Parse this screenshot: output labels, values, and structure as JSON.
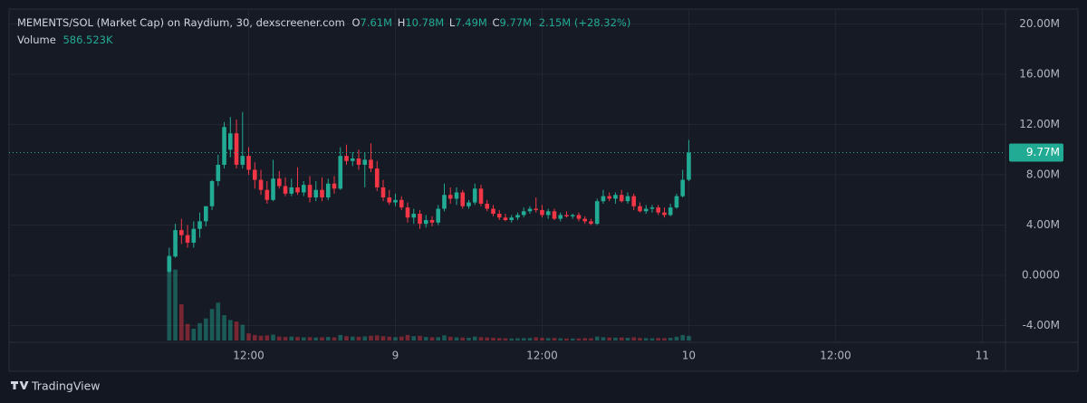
{
  "chart_data": {
    "type": "candlestick",
    "title": "MEMENTS/SOL (Market Cap) on Raydium, 30, dexscreener.com",
    "ohlc_letters": [
      "O",
      "H",
      "L",
      "C"
    ],
    "ohlc_value_labels": [
      "7.61M",
      "10.78M",
      "7.49M",
      "9.77M"
    ],
    "change_label": "2.15M (+28.32%)",
    "volume_title": "Volume",
    "volume_value_label": "586.523K",
    "last_price": 9770000,
    "last_price_label": "9.77M",
    "up_color": "#22ab94",
    "down_color": "#f23645",
    "grid": true,
    "xlim": [
      -7.6,
      73.9
    ],
    "xticks": [
      {
        "value": 12,
        "label": "12:00"
      },
      {
        "value": 24,
        "label": "9"
      },
      {
        "value": 36,
        "label": "12:00"
      },
      {
        "value": 48,
        "label": "10"
      },
      {
        "value": 60,
        "label": "12:00"
      },
      {
        "value": 72,
        "label": "11"
      }
    ],
    "ylim": [
      -5330000,
      21190000
    ],
    "yticks": [
      {
        "value": -4000000,
        "label": "-4.00M"
      },
      {
        "value": 0,
        "label": "0.0000"
      },
      {
        "value": 4000000,
        "label": "4.00M"
      },
      {
        "value": 8000000,
        "label": "8.00M"
      },
      {
        "value": 12000000,
        "label": "12.00M"
      },
      {
        "value": 16000000,
        "label": "16.00M"
      },
      {
        "value": 20000000,
        "label": "20.00M"
      }
    ],
    "x": [
      5.5,
      6,
      6.5,
      7,
      7.5,
      8,
      8.5,
      9,
      9.5,
      10,
      10.5,
      11,
      11.5,
      12,
      12.5,
      13,
      13.5,
      14,
      14.5,
      15,
      15.5,
      16,
      16.5,
      17,
      17.5,
      18,
      18.5,
      19,
      19.5,
      20,
      20.5,
      21,
      21.5,
      22,
      22.5,
      23,
      23.5,
      24,
      24.5,
      25,
      25.5,
      26,
      26.5,
      27,
      27.5,
      28,
      28.5,
      29,
      29.5,
      30,
      30.5,
      31,
      31.5,
      32,
      32.5,
      33,
      33.5,
      34,
      34.5,
      35,
      35.5,
      36,
      36.5,
      37,
      37.5,
      38,
      38.5,
      39,
      39.5,
      40,
      40.5,
      41,
      41.5,
      42,
      42.5,
      43,
      43.5,
      44,
      44.5,
      45,
      45.5,
      46,
      46.5,
      47,
      47.5,
      48
    ],
    "open": [
      300000,
      1500000,
      3600000,
      3200000,
      2600000,
      3700000,
      4300000,
      5500000,
      7500000,
      8800000,
      10000000,
      11300000,
      8800000,
      9500000,
      8400000,
      7600000,
      6800000,
      6000000,
      7700000,
      7100000,
      6500000,
      7000000,
      6600000,
      7200000,
      6200000,
      6800000,
      6200000,
      7300000,
      6900000,
      9500000,
      9100000,
      9300000,
      8800000,
      9200000,
      8500000,
      7000000,
      6200000,
      5800000,
      6000000,
      5400000,
      4600000,
      4900000,
      4100000,
      4400000,
      4200000,
      5300000,
      6400000,
      6100000,
      6600000,
      5500000,
      5800000,
      6900000,
      5700000,
      5300000,
      4900000,
      4600000,
      4400000,
      4600000,
      4800000,
      5100000,
      5300000,
      5200000,
      4800000,
      5100000,
      4500000,
      4800000,
      4700000,
      4800000,
      4500000,
      4300000,
      4100000,
      5900000,
      6300000,
      6100000,
      6400000,
      5900000,
      6300000,
      5500000,
      5100000,
      5300000,
      5400000,
      5000000,
      4800000,
      5400000,
      6300000,
      7610000
    ],
    "high": [
      2200000,
      4100000,
      4500000,
      4000000,
      4300000,
      5000000,
      5500000,
      7600000,
      9600000,
      12200000,
      12600000,
      12400000,
      13000000,
      10200000,
      9000000,
      8400000,
      7500000,
      9200000,
      8300000,
      7800000,
      7700000,
      8600000,
      7500000,
      7900000,
      7500000,
      7800000,
      7700000,
      7900000,
      10200000,
      10400000,
      9800000,
      10000000,
      9800000,
      10500000,
      9100000,
      7600000,
      6800000,
      6500000,
      6300000,
      5800000,
      5300000,
      5200000,
      4800000,
      4700000,
      5600000,
      7300000,
      7000000,
      7000000,
      6800000,
      6000000,
      7300000,
      7200000,
      6000000,
      5600000,
      5200000,
      4900000,
      4800000,
      5000000,
      5400000,
      5500000,
      6200000,
      5600000,
      5300000,
      5300000,
      5000000,
      5100000,
      4900000,
      5000000,
      4700000,
      4500000,
      6100000,
      6800000,
      6600000,
      6600000,
      6800000,
      6600000,
      6500000,
      5800000,
      5600000,
      5600000,
      5600000,
      5400000,
      5700000,
      6500000,
      8400000,
      10780000
    ],
    "low": [
      200000,
      1400000,
      2500000,
      2200000,
      2200000,
      3000000,
      3900000,
      5200000,
      7100000,
      8500000,
      9400000,
      8500000,
      8500000,
      8000000,
      6900000,
      6400000,
      5700000,
      5900000,
      6900000,
      6300000,
      6300000,
      6400000,
      6300000,
      5800000,
      5900000,
      5900000,
      6000000,
      6500000,
      6800000,
      8800000,
      8700000,
      8400000,
      7000000,
      8200000,
      6700000,
      5900000,
      5600000,
      5500000,
      5200000,
      4200000,
      4100000,
      3700000,
      3800000,
      3900000,
      4000000,
      5100000,
      5700000,
      5600000,
      5300000,
      5300000,
      5600000,
      5500000,
      5100000,
      4700000,
      4400000,
      4300000,
      4200000,
      4400000,
      4600000,
      4900000,
      5000000,
      4600000,
      4500000,
      4400000,
      4300000,
      4600000,
      4500000,
      4300000,
      4100000,
      4000000,
      4000000,
      5700000,
      5900000,
      5700000,
      5800000,
      5700000,
      5200000,
      5000000,
      4900000,
      5000000,
      4800000,
      4600000,
      4700000,
      5300000,
      6200000,
      7490000
    ],
    "close": [
      1500000,
      3600000,
      3200000,
      2600000,
      3700000,
      4300000,
      5500000,
      7500000,
      8800000,
      11800000,
      11300000,
      8800000,
      9500000,
      8400000,
      7600000,
      6800000,
      6000000,
      7700000,
      7100000,
      6500000,
      7000000,
      6600000,
      7200000,
      6200000,
      6800000,
      6200000,
      7300000,
      6900000,
      9500000,
      9100000,
      9300000,
      8800000,
      9200000,
      8500000,
      7000000,
      6200000,
      5800000,
      6000000,
      5400000,
      4600000,
      4900000,
      4100000,
      4400000,
      4200000,
      5300000,
      6400000,
      6100000,
      6600000,
      5500000,
      5800000,
      6900000,
      5700000,
      5300000,
      4900000,
      4600000,
      4400000,
      4600000,
      4800000,
      5100000,
      5300000,
      5200000,
      4800000,
      5100000,
      4500000,
      4800000,
      4700000,
      4800000,
      4500000,
      4300000,
      4100000,
      5900000,
      6300000,
      6100000,
      6400000,
      5900000,
      6300000,
      5500000,
      5100000,
      5300000,
      5400000,
      5000000,
      4800000,
      5400000,
      6300000,
      7600000,
      9770000
    ],
    "volume": [
      10800000,
      9000000,
      4600000,
      2100000,
      1500000,
      2200000,
      2800000,
      4000000,
      4800000,
      3200000,
      2600000,
      2400000,
      2000000,
      900000,
      700000,
      600000,
      650000,
      750000,
      500000,
      450000,
      500000,
      450000,
      400000,
      420000,
      380000,
      400000,
      450000,
      400000,
      700000,
      550000,
      500000,
      480000,
      520000,
      600000,
      650000,
      550000,
      480000,
      420000,
      500000,
      700000,
      550000,
      600000,
      450000,
      400000,
      420000,
      650000,
      480000,
      400000,
      380000,
      350000,
      500000,
      420000,
      380000,
      350000,
      300000,
      280000,
      260000,
      280000,
      300000,
      320000,
      400000,
      340000,
      300000,
      320000,
      280000,
      260000,
      250000,
      270000,
      300000,
      280000,
      500000,
      420000,
      380000,
      360000,
      380000,
      340000,
      400000,
      320000,
      300000,
      280000,
      320000,
      300000,
      350000,
      480000,
      700000,
      586523
    ]
  },
  "branding": "TradingView"
}
